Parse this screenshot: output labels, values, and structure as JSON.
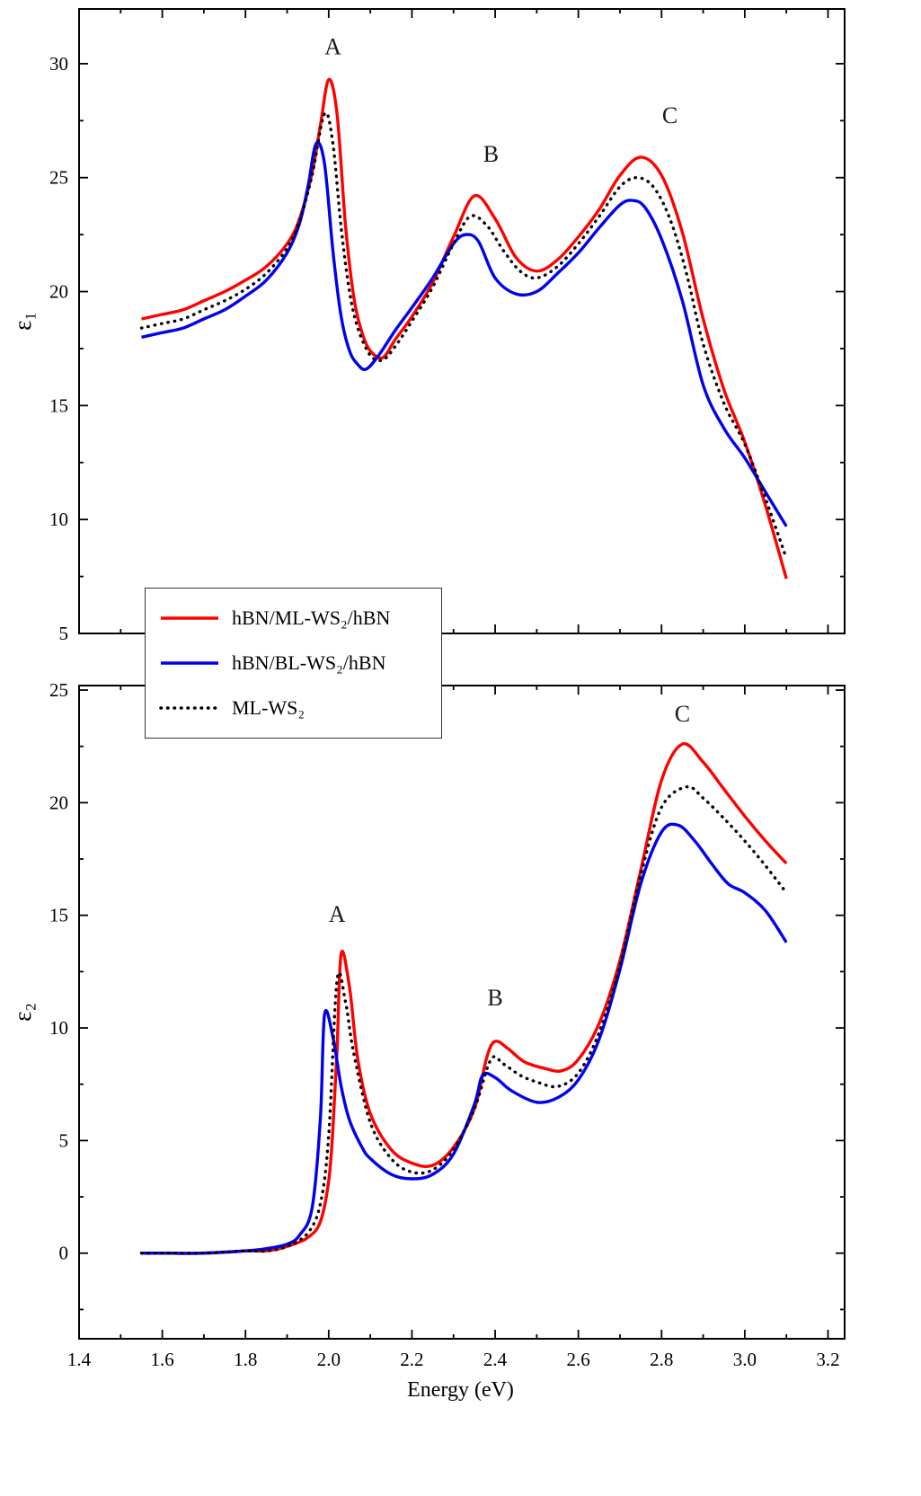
{
  "figure": {
    "xlabel": "Energy (eV)"
  },
  "legend": {
    "entries": [
      {
        "label": "hBN/ML-WS₂/hBN",
        "color": "#ff0000",
        "style": "solid"
      },
      {
        "label": "hBN/BL-WS₂/hBN",
        "color": "#0000ee",
        "style": "solid"
      },
      {
        "label": "ML-WS₂",
        "color": "#000000",
        "style": "dotted"
      }
    ]
  },
  "chart_data": [
    {
      "type": "line",
      "panel": "epsilon1",
      "title": "",
      "ylabel": "ε₁",
      "xlabel": "",
      "xlim": [
        1.4,
        3.24
      ],
      "ylim": [
        5,
        32.4
      ],
      "x_ticks": [
        1.4,
        1.6,
        1.8,
        2.0,
        2.2,
        2.4,
        2.6,
        2.8,
        3.0,
        3.2
      ],
      "y_ticks": [
        5,
        10,
        15,
        20,
        25,
        30
      ],
      "show_x_tick_labels": false,
      "grid": false,
      "annotations": [
        {
          "text": "A",
          "x": 2.01,
          "y": 30.4
        },
        {
          "text": "B",
          "x": 2.39,
          "y": 25.7
        },
        {
          "text": "C",
          "x": 2.82,
          "y": 27.4
        }
      ],
      "series": [
        {
          "name": "hBN/ML-WS₂/hBN",
          "color": "#ff0000",
          "style": "solid",
          "points": [
            [
              1.55,
              18.8
            ],
            [
              1.6,
              19.0
            ],
            [
              1.65,
              19.2
            ],
            [
              1.7,
              19.6
            ],
            [
              1.75,
              20.0
            ],
            [
              1.8,
              20.5
            ],
            [
              1.85,
              21.1
            ],
            [
              1.9,
              22.1
            ],
            [
              1.93,
              23.2
            ],
            [
              1.96,
              25.2
            ],
            [
              1.98,
              27.3
            ],
            [
              2.0,
              29.3
            ],
            [
              2.02,
              27.8
            ],
            [
              2.04,
              23.0
            ],
            [
              2.06,
              19.8
            ],
            [
              2.08,
              18.2
            ],
            [
              2.1,
              17.4
            ],
            [
              2.13,
              17.1
            ],
            [
              2.16,
              17.9
            ],
            [
              2.2,
              18.9
            ],
            [
              2.25,
              20.4
            ],
            [
              2.3,
              22.4
            ],
            [
              2.35,
              24.2
            ],
            [
              2.4,
              23.2
            ],
            [
              2.45,
              21.5
            ],
            [
              2.5,
              20.9
            ],
            [
              2.55,
              21.4
            ],
            [
              2.6,
              22.4
            ],
            [
              2.65,
              23.6
            ],
            [
              2.7,
              25.1
            ],
            [
              2.75,
              25.9
            ],
            [
              2.8,
              25.1
            ],
            [
              2.85,
              22.6
            ],
            [
              2.9,
              18.8
            ],
            [
              2.95,
              15.7
            ],
            [
              3.0,
              13.4
            ],
            [
              3.05,
              10.6
            ],
            [
              3.1,
              7.4
            ]
          ]
        },
        {
          "name": "hBN/BL-WS₂/hBN",
          "color": "#0000ee",
          "style": "solid",
          "points": [
            [
              1.55,
              18.0
            ],
            [
              1.6,
              18.2
            ],
            [
              1.65,
              18.4
            ],
            [
              1.7,
              18.8
            ],
            [
              1.75,
              19.2
            ],
            [
              1.8,
              19.8
            ],
            [
              1.85,
              20.5
            ],
            [
              1.9,
              21.7
            ],
            [
              1.93,
              23.0
            ],
            [
              1.95,
              24.6
            ],
            [
              1.97,
              26.5
            ],
            [
              1.99,
              25.6
            ],
            [
              2.01,
              21.8
            ],
            [
              2.03,
              18.9
            ],
            [
              2.05,
              17.4
            ],
            [
              2.07,
              16.8
            ],
            [
              2.09,
              16.6
            ],
            [
              2.12,
              17.2
            ],
            [
              2.16,
              18.3
            ],
            [
              2.2,
              19.3
            ],
            [
              2.25,
              20.6
            ],
            [
              2.3,
              22.1
            ],
            [
              2.33,
              22.5
            ],
            [
              2.36,
              22.2
            ],
            [
              2.4,
              20.6
            ],
            [
              2.45,
              19.9
            ],
            [
              2.5,
              20.0
            ],
            [
              2.55,
              20.8
            ],
            [
              2.6,
              21.7
            ],
            [
              2.65,
              22.8
            ],
            [
              2.7,
              23.8
            ],
            [
              2.73,
              24.0
            ],
            [
              2.76,
              23.7
            ],
            [
              2.8,
              22.3
            ],
            [
              2.85,
              19.6
            ],
            [
              2.9,
              15.9
            ],
            [
              2.95,
              14.0
            ],
            [
              3.0,
              12.7
            ],
            [
              3.05,
              11.2
            ],
            [
              3.1,
              9.7
            ]
          ]
        },
        {
          "name": "ML-WS₂",
          "color": "#000000",
          "style": "dotted",
          "points": [
            [
              1.55,
              18.4
            ],
            [
              1.6,
              18.6
            ],
            [
              1.65,
              18.8
            ],
            [
              1.7,
              19.2
            ],
            [
              1.75,
              19.6
            ],
            [
              1.8,
              20.1
            ],
            [
              1.85,
              20.8
            ],
            [
              1.9,
              21.9
            ],
            [
              1.93,
              23.1
            ],
            [
              1.96,
              25.1
            ],
            [
              1.99,
              27.8
            ],
            [
              2.01,
              26.5
            ],
            [
              2.03,
              22.8
            ],
            [
              2.05,
              20.0
            ],
            [
              2.07,
              18.4
            ],
            [
              2.1,
              17.2
            ],
            [
              2.13,
              17.0
            ],
            [
              2.16,
              17.6
            ],
            [
              2.2,
              18.7
            ],
            [
              2.25,
              20.2
            ],
            [
              2.3,
              22.1
            ],
            [
              2.34,
              23.3
            ],
            [
              2.38,
              22.9
            ],
            [
              2.42,
              21.8
            ],
            [
              2.46,
              20.9
            ],
            [
              2.5,
              20.6
            ],
            [
              2.55,
              21.1
            ],
            [
              2.6,
              22.1
            ],
            [
              2.65,
              23.3
            ],
            [
              2.7,
              24.6
            ],
            [
              2.74,
              25.0
            ],
            [
              2.78,
              24.6
            ],
            [
              2.82,
              23.2
            ],
            [
              2.86,
              20.8
            ],
            [
              2.9,
              17.7
            ],
            [
              2.95,
              15.1
            ],
            [
              3.0,
              13.3
            ],
            [
              3.05,
              10.9
            ],
            [
              3.1,
              8.3
            ]
          ]
        }
      ]
    },
    {
      "type": "line",
      "panel": "epsilon2",
      "title": "",
      "ylabel": "ε₂",
      "xlabel": "Energy (eV)",
      "xlim": [
        1.4,
        3.24
      ],
      "ylim": [
        -3.8,
        25.2
      ],
      "x_ticks": [
        1.4,
        1.6,
        1.8,
        2.0,
        2.2,
        2.4,
        2.6,
        2.8,
        3.0,
        3.2
      ],
      "y_ticks": [
        0,
        5,
        10,
        15,
        20,
        25
      ],
      "show_x_tick_labels": true,
      "grid": false,
      "annotations": [
        {
          "text": "A",
          "x": 2.02,
          "y": 14.7
        },
        {
          "text": "B",
          "x": 2.4,
          "y": 11.0
        },
        {
          "text": "C",
          "x": 2.85,
          "y": 23.6
        }
      ],
      "series": [
        {
          "name": "hBN/ML-WS₂/hBN",
          "color": "#ff0000",
          "style": "solid",
          "points": [
            [
              1.55,
              0.0
            ],
            [
              1.6,
              0.0
            ],
            [
              1.7,
              0.0
            ],
            [
              1.8,
              0.1
            ],
            [
              1.85,
              0.1
            ],
            [
              1.9,
              0.3
            ],
            [
              1.95,
              0.7
            ],
            [
              1.98,
              1.4
            ],
            [
              2.0,
              3.2
            ],
            [
              2.01,
              5.5
            ],
            [
              2.02,
              9.0
            ],
            [
              2.03,
              13.3
            ],
            [
              2.05,
              11.8
            ],
            [
              2.07,
              8.6
            ],
            [
              2.1,
              6.2
            ],
            [
              2.15,
              4.6
            ],
            [
              2.2,
              4.0
            ],
            [
              2.25,
              3.9
            ],
            [
              2.3,
              4.7
            ],
            [
              2.35,
              6.4
            ],
            [
              2.38,
              8.7
            ],
            [
              2.4,
              9.4
            ],
            [
              2.43,
              9.1
            ],
            [
              2.47,
              8.5
            ],
            [
              2.52,
              8.2
            ],
            [
              2.56,
              8.1
            ],
            [
              2.6,
              8.6
            ],
            [
              2.65,
              10.2
            ],
            [
              2.7,
              13.0
            ],
            [
              2.75,
              17.0
            ],
            [
              2.8,
              21.0
            ],
            [
              2.85,
              22.6
            ],
            [
              2.9,
              21.8
            ],
            [
              2.95,
              20.6
            ],
            [
              3.0,
              19.4
            ],
            [
              3.05,
              18.3
            ],
            [
              3.1,
              17.3
            ]
          ]
        },
        {
          "name": "hBN/BL-WS₂/hBN",
          "color": "#0000ee",
          "style": "solid",
          "points": [
            [
              1.55,
              0.0
            ],
            [
              1.6,
              0.0
            ],
            [
              1.7,
              0.0
            ],
            [
              1.8,
              0.1
            ],
            [
              1.85,
              0.2
            ],
            [
              1.9,
              0.4
            ],
            [
              1.93,
              0.8
            ],
            [
              1.96,
              2.0
            ],
            [
              1.98,
              6.0
            ],
            [
              1.99,
              10.6
            ],
            [
              2.01,
              9.6
            ],
            [
              2.03,
              7.4
            ],
            [
              2.05,
              5.9
            ],
            [
              2.08,
              4.7
            ],
            [
              2.1,
              4.2
            ],
            [
              2.15,
              3.5
            ],
            [
              2.2,
              3.3
            ],
            [
              2.25,
              3.5
            ],
            [
              2.3,
              4.4
            ],
            [
              2.35,
              6.6
            ],
            [
              2.37,
              7.9
            ],
            [
              2.4,
              7.8
            ],
            [
              2.44,
              7.2
            ],
            [
              2.5,
              6.7
            ],
            [
              2.55,
              6.9
            ],
            [
              2.6,
              7.7
            ],
            [
              2.65,
              9.5
            ],
            [
              2.7,
              12.6
            ],
            [
              2.75,
              16.4
            ],
            [
              2.8,
              18.7
            ],
            [
              2.84,
              19.0
            ],
            [
              2.88,
              18.3
            ],
            [
              2.92,
              17.3
            ],
            [
              2.96,
              16.4
            ],
            [
              3.0,
              16.0
            ],
            [
              3.05,
              15.2
            ],
            [
              3.1,
              13.8
            ]
          ]
        },
        {
          "name": "ML-WS₂",
          "color": "#000000",
          "style": "dotted",
          "points": [
            [
              1.55,
              0.0
            ],
            [
              1.6,
              0.0
            ],
            [
              1.7,
              0.0
            ],
            [
              1.8,
              0.1
            ],
            [
              1.85,
              0.1
            ],
            [
              1.9,
              0.3
            ],
            [
              1.95,
              0.9
            ],
            [
              1.98,
              2.2
            ],
            [
              2.0,
              5.2
            ],
            [
              2.02,
              12.1
            ],
            [
              2.04,
              11.2
            ],
            [
              2.06,
              8.9
            ],
            [
              2.1,
              5.8
            ],
            [
              2.15,
              4.2
            ],
            [
              2.2,
              3.6
            ],
            [
              2.25,
              3.7
            ],
            [
              2.3,
              4.6
            ],
            [
              2.35,
              6.4
            ],
            [
              2.39,
              8.6
            ],
            [
              2.42,
              8.4
            ],
            [
              2.46,
              7.9
            ],
            [
              2.5,
              7.6
            ],
            [
              2.55,
              7.4
            ],
            [
              2.6,
              8.0
            ],
            [
              2.65,
              9.8
            ],
            [
              2.7,
              12.8
            ],
            [
              2.75,
              16.8
            ],
            [
              2.8,
              19.8
            ],
            [
              2.86,
              20.7
            ],
            [
              2.9,
              20.2
            ],
            [
              2.95,
              19.3
            ],
            [
              3.0,
              18.3
            ],
            [
              3.05,
              17.2
            ],
            [
              3.1,
              16.0
            ]
          ]
        }
      ]
    }
  ]
}
